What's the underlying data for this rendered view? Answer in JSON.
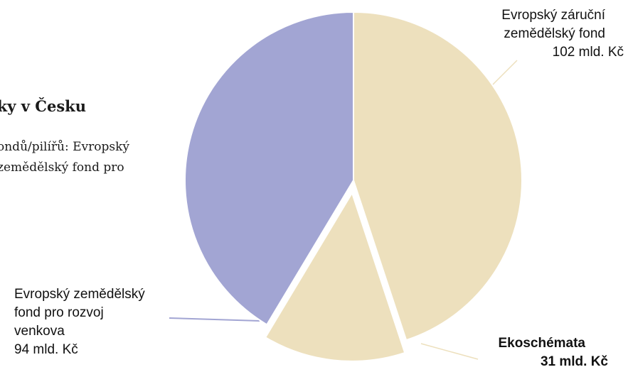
{
  "header": {
    "title": "tiky v Česku",
    "description_lines": [
      "ondů/pilířů: Evropský",
      "zemědělský fond pro"
    ]
  },
  "chart_data": {
    "type": "pie",
    "title": "tiky v Česku",
    "unit": "mld. Kč",
    "slices": [
      {
        "name": "Evropský záruční zemědělský fond",
        "value": 102,
        "value_label": "102 mld. Kč",
        "color": "#ede0bd",
        "exploded": false
      },
      {
        "name": "Ekoschémata",
        "value": 31,
        "value_label": "31 mld. Kč",
        "color": "#ede0bd",
        "exploded": true
      },
      {
        "name": "Evropský zemědělský fond pro rozvoj venkova",
        "value": 94,
        "value_label": "94 mld. Kč",
        "color": "#a2a5d3",
        "exploded": false
      }
    ]
  },
  "labels": {
    "eagf_line1": "Evropský záruční",
    "eagf_line2": "zemědělský fond",
    "eagf_value": "102 mld. Kč",
    "eco_name": "Ekoschémata",
    "eco_value": "31 mld. Kč",
    "eafrd_line1": "Evropský zemědělský",
    "eafrd_line2": "fond pro rozvoj",
    "eafrd_line3": "venkova",
    "eafrd_value": "94 mld. Kč"
  },
  "colors": {
    "leader_line": "#ede0bd",
    "leader_line_eafrd": "#a2a5d3",
    "background": "#ffffff"
  }
}
